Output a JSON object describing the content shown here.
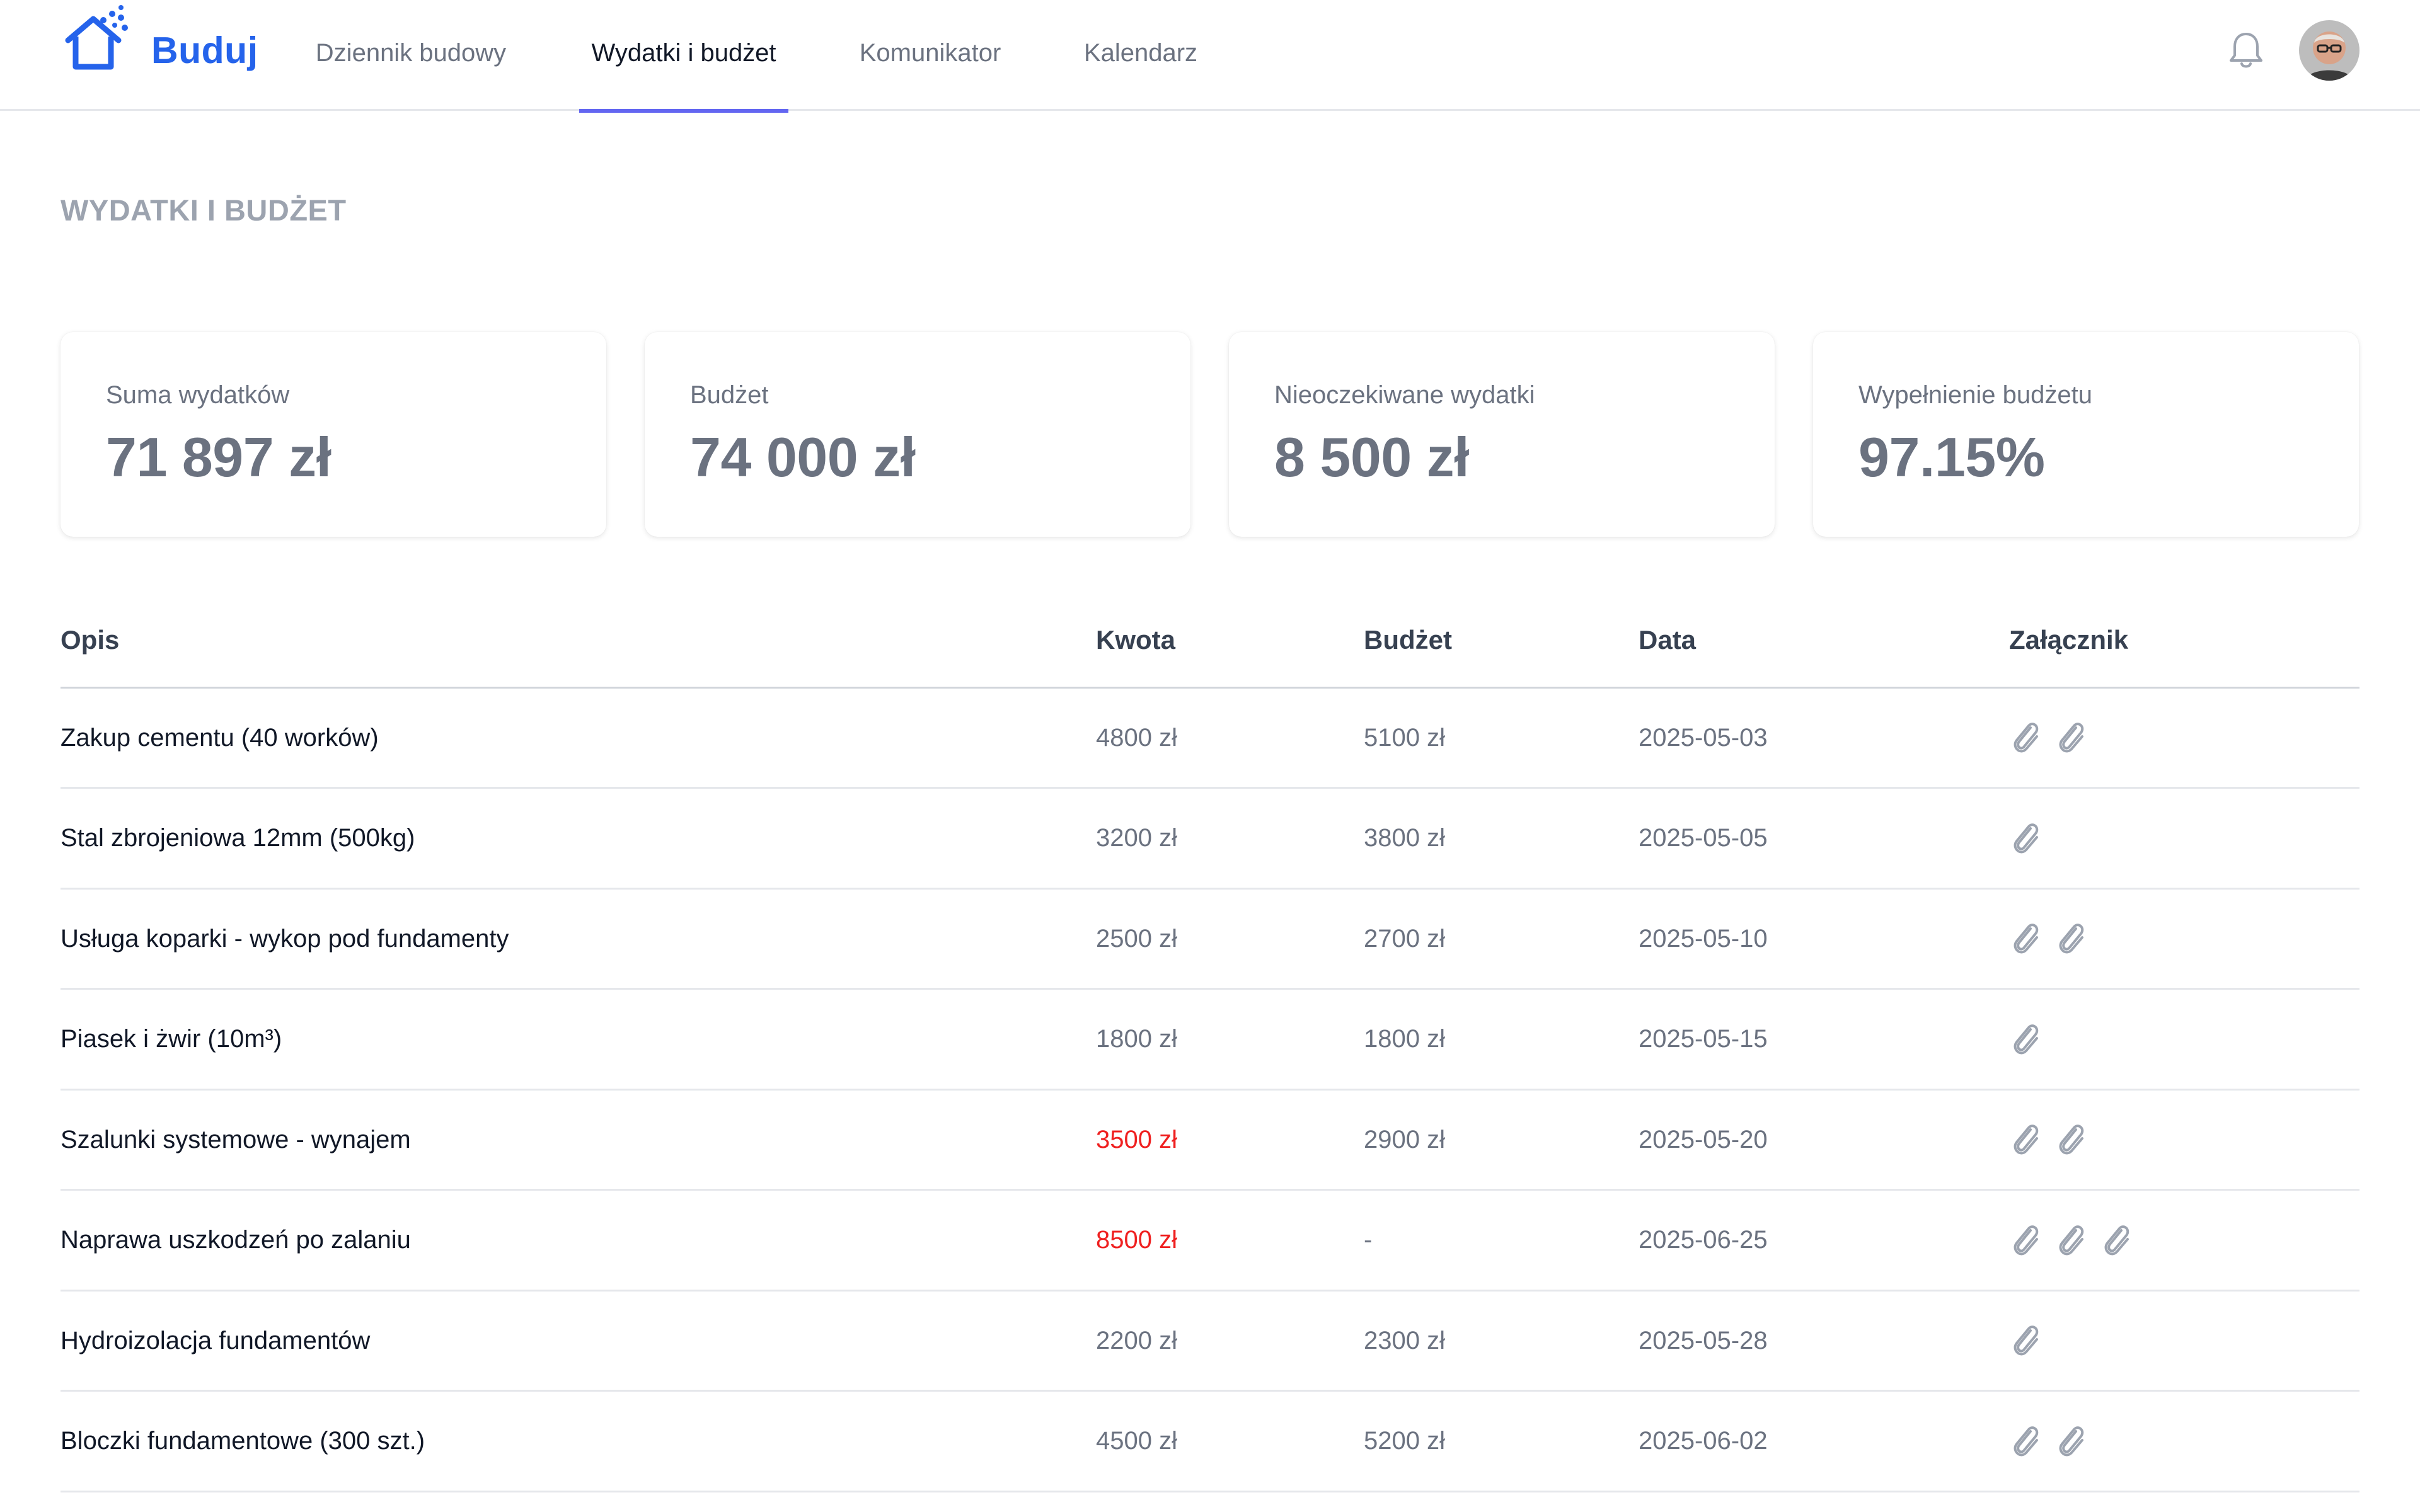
{
  "app": {
    "brand": "Buduj",
    "colors": {
      "brand": "#2563eb",
      "tab_indicator": "#6366f1",
      "over_budget": "#ef2020",
      "muted": "#6b7280"
    }
  },
  "nav": {
    "items": [
      {
        "label": "Dziennik budowy",
        "active": false
      },
      {
        "label": "Wydatki i budżet",
        "active": true
      },
      {
        "label": "Komunikator",
        "active": false
      },
      {
        "label": "Kalendarz",
        "active": false
      }
    ]
  },
  "header_icons": {
    "notifications": "bell-icon",
    "user": "avatar"
  },
  "page": {
    "title": "WYDATKI I BUDŻET"
  },
  "stats": [
    {
      "label": "Suma wydatków",
      "value": "71 897 zł"
    },
    {
      "label": "Budżet",
      "value": "74 000 zł"
    },
    {
      "label": "Nieoczekiwane wydatki",
      "value": "8 500 zł"
    },
    {
      "label": "Wypełnienie budżetu",
      "value": "97.15%"
    }
  ],
  "table": {
    "columns": {
      "desc": "Opis",
      "amount": "Kwota",
      "budget": "Budżet",
      "date": "Data",
      "attachments": "Załącznik"
    },
    "rows": [
      {
        "desc": "Zakup cementu (40 worków)",
        "amount": "4800 zł",
        "budget": "5100 zł",
        "date": "2025-05-03",
        "over": false,
        "attachments": 2
      },
      {
        "desc": "Stal zbrojeniowa 12mm (500kg)",
        "amount": "3200 zł",
        "budget": "3800 zł",
        "date": "2025-05-05",
        "over": false,
        "attachments": 1
      },
      {
        "desc": "Usługa koparki - wykop pod fundamenty",
        "amount": "2500 zł",
        "budget": "2700 zł",
        "date": "2025-05-10",
        "over": false,
        "attachments": 2
      },
      {
        "desc": "Piasek i żwir (10m³)",
        "amount": "1800 zł",
        "budget": "1800 zł",
        "date": "2025-05-15",
        "over": false,
        "attachments": 1
      },
      {
        "desc": "Szalunki systemowe - wynajem",
        "amount": "3500 zł",
        "budget": "2900 zł",
        "date": "2025-05-20",
        "over": true,
        "attachments": 2
      },
      {
        "desc": "Naprawa uszkodzeń po zalaniu",
        "amount": "8500 zł",
        "budget": "-",
        "date": "2025-06-25",
        "over": true,
        "attachments": 3
      },
      {
        "desc": "Hydroizolacja fundamentów",
        "amount": "2200 zł",
        "budget": "2300 zł",
        "date": "2025-05-28",
        "over": false,
        "attachments": 1
      },
      {
        "desc": "Bloczki fundamentowe (300 szt.)",
        "amount": "4500 zł",
        "budget": "5200 zł",
        "date": "2025-06-02",
        "over": false,
        "attachments": 2
      }
    ]
  }
}
